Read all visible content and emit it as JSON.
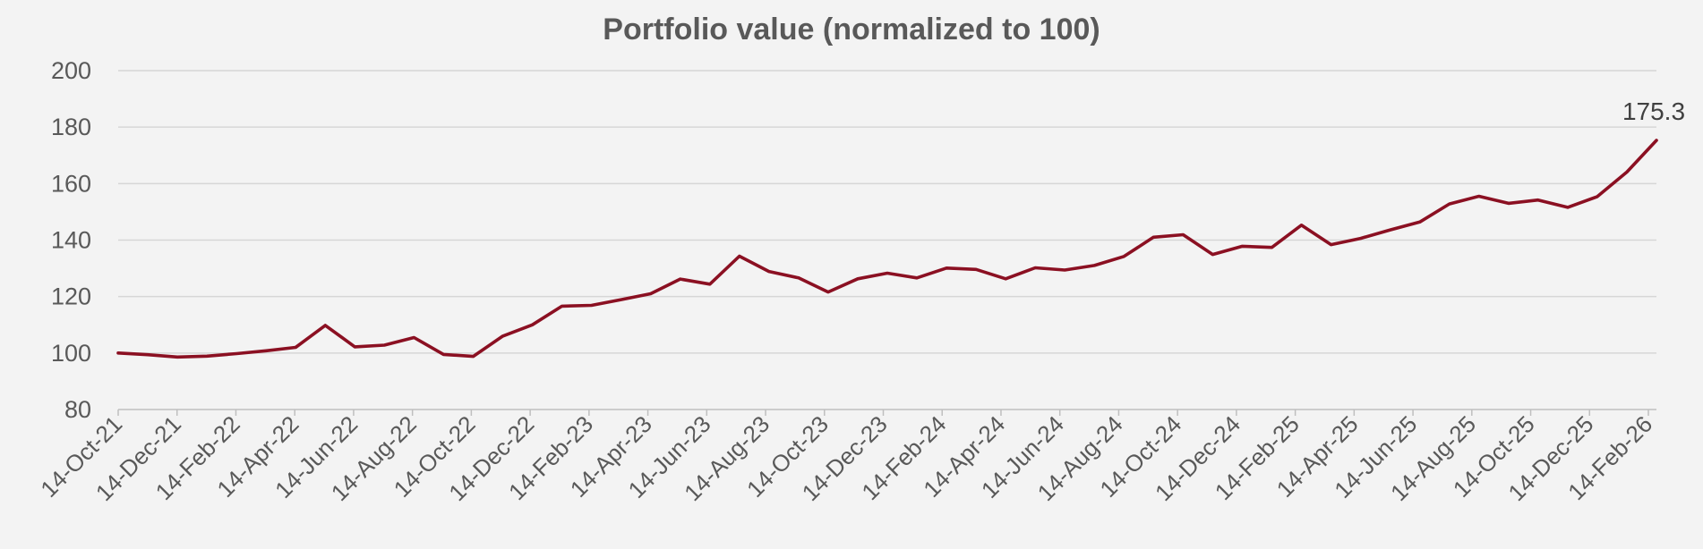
{
  "chart_data": {
    "type": "line",
    "title": "Portfolio value (normalized to 100)",
    "xlabel": "",
    "ylabel": "",
    "ylim": [
      80,
      200
    ],
    "yticks": [
      80,
      100,
      120,
      140,
      160,
      180,
      200
    ],
    "grid": true,
    "legend": "none",
    "line_color": "#8b1022",
    "tick_labels": [
      "14-Oct-21",
      "14-Dec-21",
      "14-Feb-22",
      "14-Apr-22",
      "14-Jun-22",
      "14-Aug-22",
      "14-Oct-22",
      "14-Dec-22",
      "14-Feb-23",
      "14-Apr-23",
      "14-Jun-23",
      "14-Aug-23",
      "14-Oct-23",
      "14-Dec-23",
      "14-Feb-24",
      "14-Apr-24",
      "14-Jun-24",
      "14-Aug-24",
      "14-Oct-24",
      "14-Dec-24",
      "14-Feb-25",
      "14-Apr-25",
      "14-Jun-25",
      "14-Aug-25",
      "14-Oct-25",
      "14-Dec-25",
      "14-Feb-26"
    ],
    "series": [
      {
        "name": "Portfolio value",
        "values": [
          100.0,
          99.4,
          98.6,
          98.9,
          99.8,
          100.8,
          102.0,
          109.8,
          102.2,
          102.8,
          105.5,
          99.5,
          98.8,
          106.0,
          110.0,
          116.6,
          116.9,
          118.9,
          121.0,
          126.2,
          124.4,
          134.3,
          128.9,
          126.6,
          121.6,
          126.3,
          128.3,
          126.6,
          130.1,
          129.6,
          126.3,
          130.2,
          129.4,
          131.0,
          134.2,
          141.0,
          141.9,
          134.9,
          137.8,
          137.4,
          145.3,
          138.4,
          140.6,
          143.6,
          146.4,
          152.8,
          155.5,
          153.0,
          154.2,
          151.6,
          155.4,
          164.1,
          175.3
        ]
      }
    ],
    "end_label": "175.3"
  }
}
